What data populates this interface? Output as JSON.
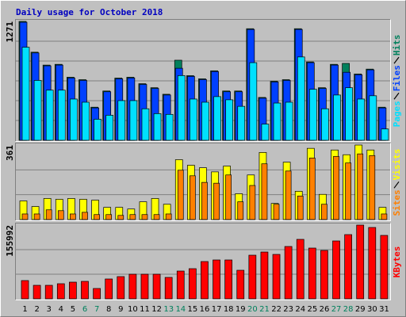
{
  "title": "Daily usage for October 2018",
  "chart_data": [
    {
      "type": "bar",
      "ylim": [
        0,
        1271
      ],
      "yticks": [
        1271
      ],
      "grid": true,
      "series": [
        {
          "name": "Hits",
          "color": "#00805c",
          "values": [
            1271,
            942,
            804,
            812,
            674,
            648,
            354,
            527,
            665,
            674,
            605,
            562,
            492,
            856,
            691,
            657,
            743,
            527,
            527,
            1193,
            458,
            631,
            648,
            1193,
            838,
            562,
            812,
            822,
            709,
            761,
            354
          ]
        },
        {
          "name": "Files",
          "color": "#0040ff",
          "values": [
            1262,
            934,
            796,
            804,
            666,
            640,
            346,
            519,
            657,
            666,
            597,
            554,
            484,
            770,
            683,
            649,
            735,
            519,
            519,
            1185,
            450,
            623,
            640,
            1185,
            830,
            554,
            804,
            727,
            701,
            753,
            346
          ]
        },
        {
          "name": "Pages",
          "color": "#00e0ff",
          "values": [
            995,
            640,
            536,
            536,
            441,
            407,
            225,
            268,
            424,
            424,
            337,
            285,
            277,
            692,
            441,
            407,
            467,
            433,
            363,
            830,
            173,
            398,
            407,
            891,
            545,
            337,
            484,
            562,
            441,
            476,
            121
          ]
        }
      ]
    },
    {
      "type": "bar",
      "ylim": [
        0,
        361
      ],
      "yticks": [
        361
      ],
      "grid": true,
      "series": [
        {
          "name": "Visits",
          "color": "#ffff00",
          "values": [
            90,
            63,
            102,
            98,
            102,
            98,
            94,
            59,
            59,
            51,
            86,
            102,
            74,
            290,
            263,
            251,
            231,
            259,
            125,
            216,
            325,
            78,
            278,
            137,
            345,
            122,
            337,
            314,
            361,
            337,
            59
          ]
        },
        {
          "name": "Sites",
          "color": "#ff8000",
          "values": [
            27,
            27,
            47,
            43,
            27,
            35,
            24,
            24,
            20,
            24,
            24,
            24,
            27,
            239,
            212,
            180,
            176,
            216,
            86,
            165,
            270,
            74,
            235,
            114,
            298,
            74,
            306,
            274,
            318,
            310,
            27
          ]
        }
      ]
    },
    {
      "type": "bar",
      "ylim": [
        0,
        155992
      ],
      "yticks": [
        155992
      ],
      "grid": true,
      "categories": [
        "1",
        "2",
        "3",
        "4",
        "5",
        "6",
        "7",
        "8",
        "9",
        "10",
        "11",
        "12",
        "13",
        "14",
        "15",
        "16",
        "17",
        "18",
        "19",
        "20",
        "21",
        "22",
        "23",
        "24",
        "25",
        "26",
        "27",
        "28",
        "29",
        "30",
        "31"
      ],
      "category_colors": [
        "#000000",
        "#000000",
        "#000000",
        "#000000",
        "#000000",
        "#00805c",
        "#00805c",
        "#000000",
        "#000000",
        "#000000",
        "#000000",
        "#000000",
        "#00805c",
        "#00805c",
        "#000000",
        "#000000",
        "#000000",
        "#000000",
        "#000000",
        "#00805c",
        "#00805c",
        "#000000",
        "#000000",
        "#000000",
        "#000000",
        "#000000",
        "#00805c",
        "#00805c",
        "#000000",
        "#000000",
        "#000000"
      ],
      "series": [
        {
          "name": "KBytes",
          "color": "#ff0000",
          "values": [
            38571,
            28509,
            28509,
            31863,
            35217,
            36894,
            21801,
            41925,
            46956,
            51987,
            51987,
            51987,
            45279,
            58695,
            63726,
            78819,
            82173,
            82173,
            60372,
            92235,
            98943,
            93912,
            110682,
            125775,
            107328,
            102297,
            122421,
            135837,
            155992,
            150930,
            134160
          ]
        }
      ]
    }
  ]
}
